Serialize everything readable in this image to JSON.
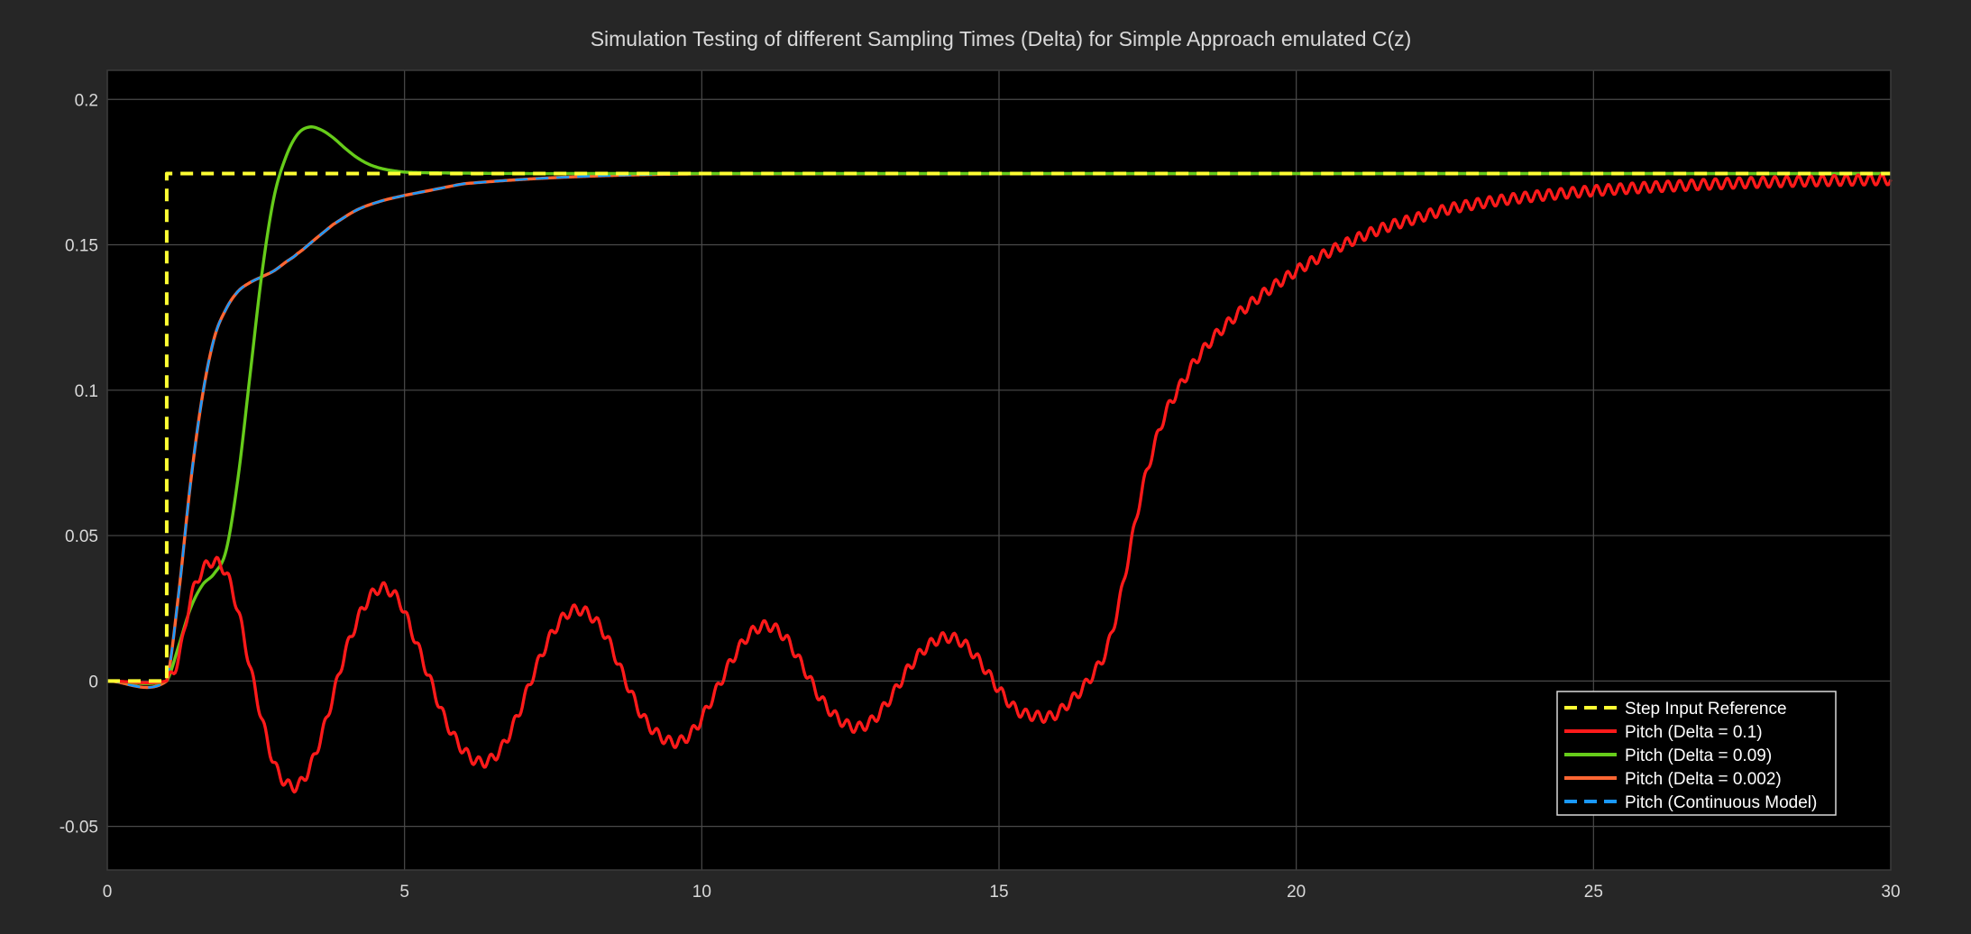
{
  "chart_data": {
    "type": "line",
    "title": "Simulation Testing of different Sampling Times (Delta) for Simple Approach emulated C(z)",
    "xlabel": "",
    "ylabel": "",
    "xlim": [
      0,
      30
    ],
    "ylim": [
      -0.065,
      0.21
    ],
    "x_ticks": [
      0,
      5,
      10,
      15,
      20,
      25,
      30
    ],
    "x_tick_labels": [
      "0",
      "5",
      "10",
      "15",
      "20",
      "25",
      "30"
    ],
    "y_ticks": [
      -0.05,
      0,
      0.05,
      0.1,
      0.15,
      0.2
    ],
    "y_tick_labels": [
      "-0.05",
      "0",
      "0.05",
      "0.1",
      "0.15",
      "0.2"
    ],
    "grid": true,
    "legend_position": "bottom-right",
    "background": "#000000",
    "series": [
      {
        "name": "Step Input Reference",
        "color": "#ffff33",
        "dashed": true,
        "x": [
          0,
          1,
          1,
          30
        ],
        "y": [
          0,
          0,
          0.1745,
          0.1745
        ]
      },
      {
        "name": "Pitch (Delta = 0.1)",
        "color": "#ff1a1a",
        "dashed": false,
        "ripple_amplitude": 0.0018,
        "ripple_period": 0.2,
        "x": [
          0,
          1.0,
          1.2,
          1.4,
          1.6,
          1.8,
          2.0,
          2.2,
          2.4,
          2.6,
          2.8,
          3.0,
          3.2,
          3.4,
          3.6,
          3.8,
          4.0,
          4.3,
          4.6,
          4.9,
          5.1,
          5.4,
          5.7,
          6.0,
          6.3,
          6.6,
          6.9,
          7.2,
          7.5,
          7.8,
          8.1,
          8.4,
          8.7,
          9.0,
          9.3,
          9.6,
          9.9,
          10.2,
          10.5,
          10.8,
          11.1,
          11.4,
          11.7,
          12.0,
          12.3,
          12.6,
          12.9,
          13.2,
          13.5,
          13.8,
          14.1,
          14.4,
          14.7,
          15.0,
          15.3,
          15.6,
          15.9,
          16.2,
          16.5,
          16.8,
          17.0,
          17.2,
          17.4,
          17.6,
          17.8,
          18.0,
          18.3,
          18.6,
          19.0,
          19.5,
          20.0,
          20.5,
          21.0,
          21.5,
          22.0,
          22.5,
          23.0,
          23.5,
          24.0,
          24.5,
          25.0,
          25.5,
          26.0,
          26.5,
          27.0,
          27.5,
          28.0,
          28.5,
          29.0,
          29.5,
          30.0
        ],
        "y": [
          0,
          0,
          0.008,
          0.028,
          0.038,
          0.041,
          0.037,
          0.024,
          0.005,
          -0.013,
          -0.028,
          -0.035,
          -0.036,
          -0.03,
          -0.019,
          -0.005,
          0.01,
          0.025,
          0.032,
          0.028,
          0.018,
          0.002,
          -0.014,
          -0.024,
          -0.028,
          -0.024,
          -0.012,
          0.004,
          0.017,
          0.024,
          0.023,
          0.015,
          0.001,
          -0.012,
          -0.019,
          -0.021,
          -0.016,
          -0.005,
          0.007,
          0.016,
          0.019,
          0.015,
          0.005,
          -0.006,
          -0.013,
          -0.016,
          -0.013,
          -0.005,
          0.005,
          0.012,
          0.015,
          0.013,
          0.006,
          -0.003,
          -0.01,
          -0.012,
          -0.012,
          -0.007,
          0.0,
          0.01,
          0.025,
          0.045,
          0.065,
          0.08,
          0.092,
          0.1,
          0.11,
          0.118,
          0.126,
          0.134,
          0.141,
          0.147,
          0.152,
          0.156,
          0.159,
          0.162,
          0.164,
          0.1655,
          0.1667,
          0.1677,
          0.1686,
          0.1693,
          0.1699,
          0.1704,
          0.1709,
          0.1713,
          0.1716,
          0.1719,
          0.1721,
          0.1723,
          0.1724
        ]
      },
      {
        "name": "Pitch (Delta = 0.09)",
        "color": "#66cc1a",
        "dashed": false,
        "x": [
          0,
          1.0,
          1.2,
          1.4,
          1.6,
          1.8,
          2.0,
          2.2,
          2.4,
          2.6,
          2.8,
          3.0,
          3.2,
          3.4,
          3.6,
          3.8,
          4.0,
          4.2,
          4.4,
          4.6,
          4.8,
          5.0,
          5.3,
          5.7,
          6.2,
          7.0,
          8.0,
          30.0
        ],
        "y": [
          0,
          0,
          0.012,
          0.025,
          0.033,
          0.037,
          0.045,
          0.07,
          0.105,
          0.14,
          0.166,
          0.18,
          0.188,
          0.1905,
          0.1895,
          0.1868,
          0.1832,
          0.18,
          0.1777,
          0.1763,
          0.1755,
          0.175,
          0.1748,
          0.1747,
          0.1746,
          0.1745,
          0.1745,
          0.1745
        ]
      },
      {
        "name": "Pitch (Delta = 0.002)",
        "color": "#ff6633",
        "dashed": false,
        "x": [
          0,
          1.0,
          1.2,
          1.4,
          1.6,
          1.8,
          2.0,
          2.2,
          2.4,
          2.6,
          2.8,
          3.0,
          3.2,
          3.5,
          3.8,
          4.2,
          4.6,
          5.0,
          5.5,
          6.0,
          7.0,
          8.0,
          9.0,
          10.0,
          30.0
        ],
        "y": [
          0,
          0,
          0.03,
          0.068,
          0.098,
          0.118,
          0.128,
          0.134,
          0.137,
          0.139,
          0.141,
          0.144,
          0.147,
          0.152,
          0.157,
          0.162,
          0.165,
          0.167,
          0.169,
          0.171,
          0.1725,
          0.1735,
          0.1741,
          0.1744,
          0.1745
        ]
      },
      {
        "name": "Pitch (Continuous Model)",
        "color": "#1a99ff",
        "dashed": true,
        "x": [
          0,
          1.0,
          1.2,
          1.4,
          1.6,
          1.8,
          2.0,
          2.2,
          2.4,
          2.6,
          2.8,
          3.0,
          3.2,
          3.5,
          3.8,
          4.2,
          4.6,
          5.0,
          5.5,
          6.0,
          7.0,
          8.0,
          9.0,
          10.0,
          30.0
        ],
        "y": [
          0,
          0,
          0.03,
          0.068,
          0.098,
          0.118,
          0.128,
          0.134,
          0.137,
          0.139,
          0.141,
          0.144,
          0.147,
          0.152,
          0.157,
          0.162,
          0.165,
          0.167,
          0.169,
          0.171,
          0.1725,
          0.1735,
          0.1741,
          0.1744,
          0.1745
        ]
      }
    ]
  }
}
